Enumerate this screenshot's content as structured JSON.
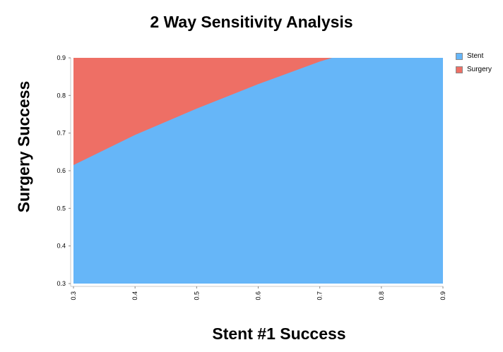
{
  "chart_data": {
    "type": "area",
    "title": "2 Way Sensitivity Analysis",
    "xlabel": "Stent #1 Success",
    "ylabel": "Surgery Success",
    "xlim": [
      0.3,
      0.9
    ],
    "ylim": [
      0.3,
      0.9
    ],
    "x_ticks": [
      "0.3",
      "0.4",
      "0.5",
      "0.6",
      "0.7",
      "0.8",
      "0.9"
    ],
    "y_ticks": [
      "0.3",
      "0.4",
      "0.5",
      "0.6",
      "0.7",
      "0.8",
      "0.9"
    ],
    "grid": false,
    "legend_position": "top-right",
    "series": [
      {
        "name": "Stent",
        "color": "#66b6f8",
        "region": "below boundary"
      },
      {
        "name": "Surgery",
        "color": "#ee6f65",
        "region": "above boundary"
      }
    ],
    "boundary": {
      "x": [
        0.3,
        0.4,
        0.5,
        0.6,
        0.7,
        0.72
      ],
      "y": [
        0.615,
        0.695,
        0.765,
        0.83,
        0.89,
        0.9
      ]
    }
  }
}
